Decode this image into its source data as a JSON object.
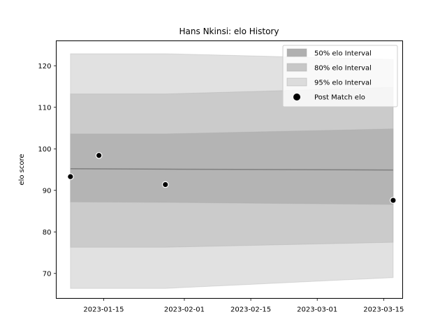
{
  "chart_data": {
    "type": "area",
    "title": "Hans Nkinsi: elo History",
    "xlabel": "",
    "ylabel": "elo score",
    "x_type": "date",
    "xlim": [
      "2023-01-05",
      "2023-03-19"
    ],
    "ylim": [
      64,
      126
    ],
    "x_ticks": [
      "2023-01-15",
      "2023-02-01",
      "2023-02-15",
      "2023-03-01",
      "2023-03-15"
    ],
    "y_ticks": [
      70,
      80,
      90,
      100,
      110,
      120
    ],
    "grid": false,
    "legend_position": "top-right",
    "band_dates": [
      "2023-01-08",
      "2023-01-28",
      "2023-03-17"
    ],
    "mean": [
      95.2,
      95.1,
      94.9
    ],
    "intervals": [
      {
        "name": "50% elo Interval",
        "color": "#b0b0b0",
        "lower": [
          87.2,
          87.1,
          86.6
        ],
        "upper": [
          103.6,
          103.6,
          104.8
        ]
      },
      {
        "name": "80% elo Interval",
        "color": "#c7c7c7",
        "lower": [
          76.3,
          76.3,
          77.5
        ],
        "upper": [
          113.2,
          113.2,
          114.8
        ]
      },
      {
        "name": "95% elo Interval",
        "color": "#dcdcdc",
        "lower": [
          66.4,
          66.4,
          69.0
        ],
        "upper": [
          122.9,
          122.9,
          121.5
        ]
      }
    ],
    "points_series": {
      "name": "Post Match elo",
      "color": "#000000",
      "points": [
        {
          "x": "2023-01-08",
          "y": 93.3
        },
        {
          "x": "2023-01-14",
          "y": 98.4
        },
        {
          "x": "2023-01-28",
          "y": 91.4
        },
        {
          "x": "2023-03-17",
          "y": 87.6
        }
      ]
    }
  }
}
